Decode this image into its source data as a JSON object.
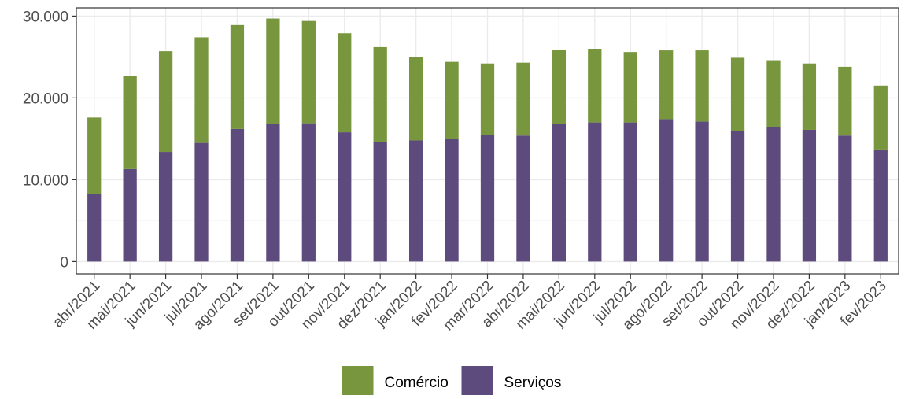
{
  "chart_data": {
    "type": "bar",
    "stacked": true,
    "categories": [
      "abr/2021",
      "mai/2021",
      "jun/2021",
      "jul/2021",
      "ago/2021",
      "set/2021",
      "out/2021",
      "nov/2021",
      "dez/2021",
      "jan/2022",
      "fev/2022",
      "mar/2022",
      "abr/2022",
      "mai/2022",
      "jun/2022",
      "jul/2022",
      "ago/2022",
      "set/2022",
      "out/2022",
      "nov/2022",
      "dez/2022",
      "jan/2023",
      "fev/2023"
    ],
    "series": [
      {
        "name": "Serviços",
        "color": "#5e4b7e",
        "values": [
          8300,
          11300,
          13400,
          14500,
          16200,
          16800,
          16900,
          15800,
          14600,
          14800,
          15000,
          15500,
          15400,
          16800,
          17000,
          17000,
          17400,
          17100,
          16000,
          16400,
          16100,
          15400,
          13700
        ]
      },
      {
        "name": "Comércio",
        "color": "#77963e",
        "values": [
          9300,
          11400,
          12300,
          12900,
          12700,
          12900,
          12500,
          12100,
          11600,
          10200,
          9400,
          8700,
          8900,
          9100,
          9000,
          8600,
          8400,
          8700,
          8900,
          8200,
          8100,
          8400,
          7800
        ]
      }
    ],
    "legend_order": [
      "Comércio",
      "Serviços"
    ],
    "yticks": [
      0,
      10000,
      20000,
      30000
    ],
    "ytick_labels": [
      "0",
      "10.000",
      "20.000",
      "30.000"
    ],
    "ylim": [
      -1500,
      31000
    ],
    "xlabel": "",
    "ylabel": "",
    "title": "",
    "grid": true,
    "legend_position": "bottom"
  }
}
